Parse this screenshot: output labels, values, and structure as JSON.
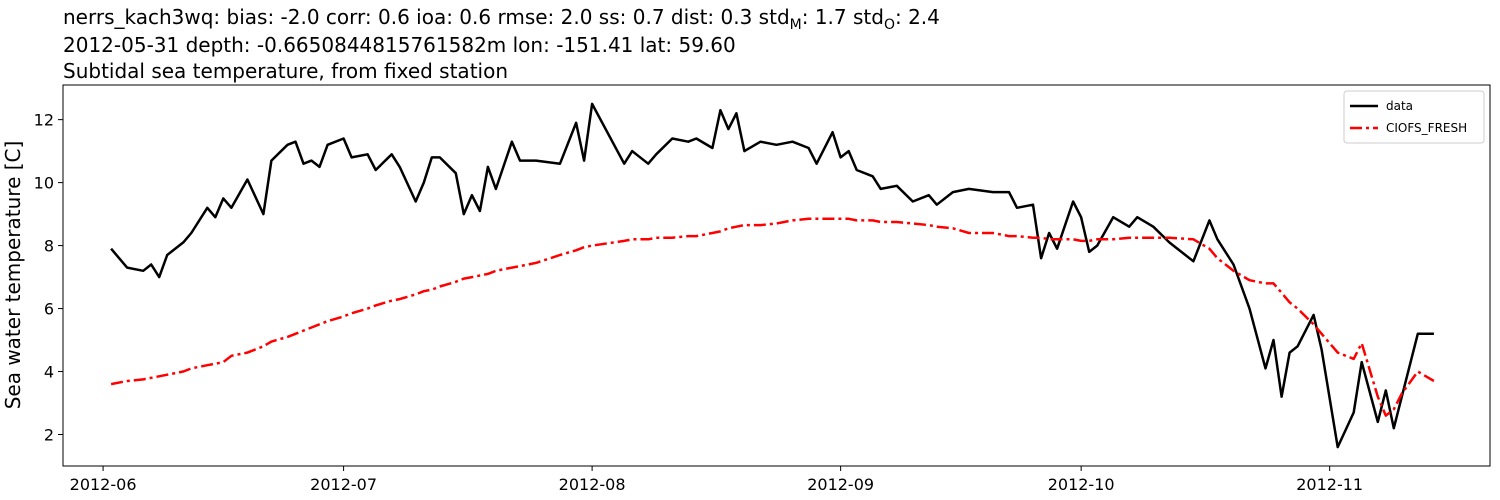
{
  "chart_data": {
    "type": "line",
    "title_parts": [
      "nerrs_kach3wq: bias: -2.0  corr: 0.6  ioa: 0.6  rmse: 2.0  ss: 0.7  dist: 0.3  std",
      "M",
      ": 1.7  std",
      "O",
      ": 2.4"
    ],
    "subtitle": [
      "2012-05-31 depth: -0.6650844815761582m lon: -151.41 lat: 59.60",
      "Subtidal sea temperature, from fixed station"
    ],
    "y_label": "Sea water temperature [C]",
    "x": [
      "2012-06-02",
      "2012-06-04",
      "2012-06-06",
      "2012-06-07",
      "2012-06-08",
      "2012-06-09",
      "2012-06-11",
      "2012-06-12",
      "2012-06-14",
      "2012-06-15",
      "2012-06-16",
      "2012-06-17",
      "2012-06-19",
      "2012-06-21",
      "2012-06-22",
      "2012-06-24",
      "2012-06-25",
      "2012-06-26",
      "2012-06-27",
      "2012-06-28",
      "2012-06-29",
      "2012-07-01",
      "2012-07-02",
      "2012-07-04",
      "2012-07-05",
      "2012-07-07",
      "2012-07-08",
      "2012-07-10",
      "2012-07-11",
      "2012-07-12",
      "2012-07-13",
      "2012-07-15",
      "2012-07-16",
      "2012-07-17",
      "2012-07-18",
      "2012-07-19",
      "2012-07-20",
      "2012-07-22",
      "2012-07-23",
      "2012-07-25",
      "2012-07-28",
      "2012-07-30",
      "2012-07-31",
      "2012-08-01",
      "2012-08-05",
      "2012-08-06",
      "2012-08-08",
      "2012-08-09",
      "2012-08-11",
      "2012-08-13",
      "2012-08-14",
      "2012-08-16",
      "2012-08-17",
      "2012-08-18",
      "2012-08-19",
      "2012-08-20",
      "2012-08-22",
      "2012-08-24",
      "2012-08-26",
      "2012-08-28",
      "2012-08-29",
      "2012-08-31",
      "2012-09-01",
      "2012-09-02",
      "2012-09-03",
      "2012-09-05",
      "2012-09-06",
      "2012-09-08",
      "2012-09-10",
      "2012-09-12",
      "2012-09-13",
      "2012-09-15",
      "2012-09-17",
      "2012-09-20",
      "2012-09-22",
      "2012-09-23",
      "2012-09-25",
      "2012-09-26",
      "2012-09-27",
      "2012-09-28",
      "2012-09-30",
      "2012-10-01",
      "2012-10-02",
      "2012-10-03",
      "2012-10-05",
      "2012-10-07",
      "2012-10-08",
      "2012-10-10",
      "2012-10-12",
      "2012-10-15",
      "2012-10-17",
      "2012-10-18",
      "2012-10-20",
      "2012-10-22",
      "2012-10-24",
      "2012-10-25",
      "2012-10-26",
      "2012-10-27",
      "2012-10-28",
      "2012-10-30",
      "2012-10-31",
      "2012-11-02",
      "2012-11-04",
      "2012-11-05",
      "2012-11-07",
      "2012-11-08",
      "2012-11-09",
      "2012-11-10",
      "2012-11-12",
      "2012-11-14"
    ],
    "series": [
      {
        "name": "data",
        "color": "#000000",
        "dash": "solid",
        "values": [
          7.9,
          7.3,
          7.2,
          7.4,
          7.0,
          7.7,
          8.1,
          8.4,
          9.2,
          8.9,
          9.5,
          9.2,
          10.1,
          9.0,
          10.7,
          11.2,
          11.3,
          10.6,
          10.7,
          10.5,
          11.2,
          11.4,
          10.8,
          10.9,
          10.4,
          10.9,
          10.5,
          9.4,
          10.0,
          10.8,
          10.8,
          10.3,
          9.0,
          9.6,
          9.1,
          10.5,
          9.8,
          11.3,
          10.7,
          10.7,
          10.6,
          11.9,
          10.7,
          12.5,
          10.6,
          11.0,
          10.6,
          10.9,
          11.4,
          11.3,
          11.4,
          11.1,
          12.3,
          11.7,
          12.2,
          11.0,
          11.3,
          11.2,
          11.3,
          11.1,
          10.6,
          11.6,
          10.8,
          11.0,
          10.4,
          10.2,
          9.8,
          9.9,
          9.4,
          9.6,
          9.3,
          9.7,
          9.8,
          9.7,
          9.7,
          9.2,
          9.3,
          7.6,
          8.4,
          7.9,
          9.4,
          8.9,
          7.8,
          8.0,
          8.9,
          8.6,
          8.9,
          8.6,
          8.1,
          7.5,
          8.8,
          8.2,
          7.4,
          6.0,
          4.1,
          5.0,
          3.2,
          4.6,
          4.8,
          5.8,
          4.7,
          1.6,
          2.7,
          4.3,
          2.4,
          3.4,
          2.2,
          3.2,
          5.2,
          5.2
        ]
      },
      {
        "name": "CIOFS_FRESH",
        "color": "#ff0000",
        "dash": "dashdot",
        "values": [
          3.6,
          3.7,
          3.75,
          3.8,
          3.85,
          3.9,
          4.0,
          4.1,
          4.2,
          4.25,
          4.3,
          4.5,
          4.6,
          4.8,
          4.95,
          5.1,
          5.2,
          5.3,
          5.4,
          5.5,
          5.6,
          5.75,
          5.85,
          6.0,
          6.1,
          6.25,
          6.3,
          6.45,
          6.55,
          6.6,
          6.7,
          6.85,
          6.95,
          7.0,
          7.05,
          7.1,
          7.2,
          7.3,
          7.35,
          7.45,
          7.7,
          7.85,
          7.95,
          8.0,
          8.15,
          8.2,
          8.2,
          8.25,
          8.25,
          8.3,
          8.3,
          8.4,
          8.45,
          8.55,
          8.6,
          8.65,
          8.65,
          8.7,
          8.8,
          8.85,
          8.85,
          8.85,
          8.85,
          8.85,
          8.8,
          8.8,
          8.75,
          8.75,
          8.7,
          8.65,
          8.6,
          8.55,
          8.4,
          8.4,
          8.3,
          8.3,
          8.25,
          8.25,
          8.2,
          8.2,
          8.2,
          8.15,
          8.15,
          8.2,
          8.2,
          8.25,
          8.25,
          8.25,
          8.25,
          8.2,
          7.9,
          7.6,
          7.2,
          6.9,
          6.8,
          6.8,
          6.5,
          6.2,
          6.0,
          5.5,
          5.2,
          4.6,
          4.4,
          4.9,
          3.2,
          2.6,
          2.8,
          3.3,
          4.0,
          3.7
        ]
      }
    ],
    "xlim": [
      "2012-05-27",
      "2012-11-21"
    ],
    "xticks": [
      {
        "value": "2012-06-01",
        "label": "2012-06"
      },
      {
        "value": "2012-07-01",
        "label": "2012-07"
      },
      {
        "value": "2012-08-01",
        "label": "2012-08"
      },
      {
        "value": "2012-09-01",
        "label": "2012-09"
      },
      {
        "value": "2012-10-01",
        "label": "2012-10"
      },
      {
        "value": "2012-11-01",
        "label": "2012-11"
      }
    ],
    "ylim": [
      1.0,
      13.1
    ],
    "yticks": [
      2,
      4,
      6,
      8,
      10,
      12
    ],
    "grid": false,
    "legend": "upper right"
  }
}
